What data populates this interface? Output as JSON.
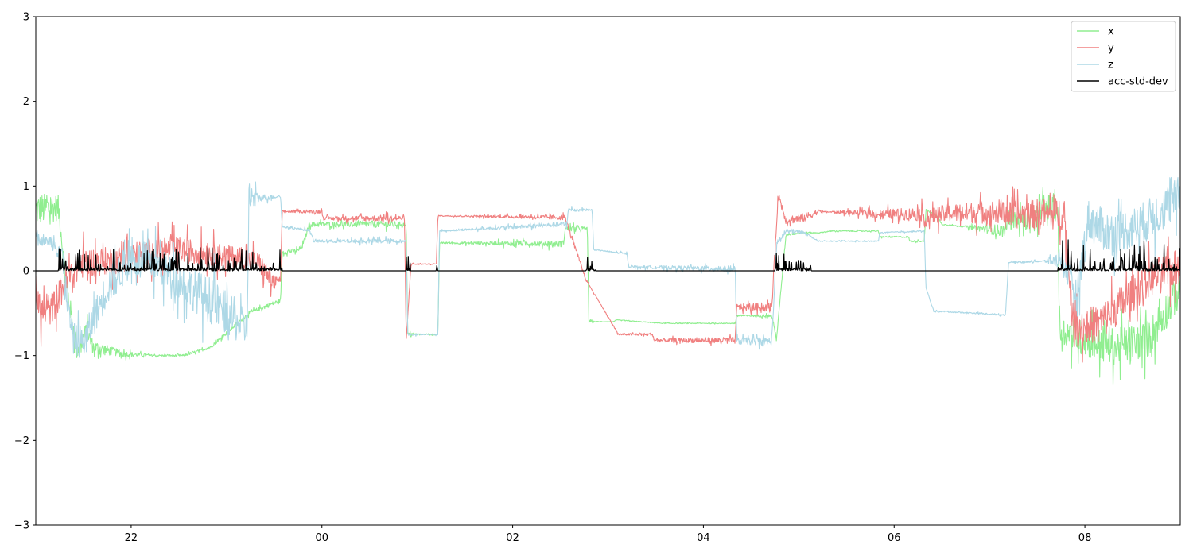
{
  "chart_data": {
    "type": "line",
    "title": "",
    "xlabel": "",
    "ylabel": "",
    "xlim": [
      "21:00",
      "09:00"
    ],
    "ylim": [
      -3,
      3
    ],
    "x_ticks": [
      "22",
      "00",
      "02",
      "04",
      "06",
      "08"
    ],
    "y_ticks": [
      "−3",
      "−2",
      "−1",
      "0",
      "1",
      "2",
      "3"
    ],
    "grid": false,
    "legend_position": "top-right",
    "series": [
      {
        "name": "x",
        "color": "#90ee90",
        "noise": [
          [
            0,
            0.2
          ],
          [
            5.2,
            0.04
          ],
          [
            7.4,
            0.01
          ],
          [
            22.3,
            0.04
          ],
          [
            24.3,
            0.005
          ],
          [
            33.3,
            0.04
          ],
          [
            35.3,
            0.005
          ],
          [
            39.6,
            0.005
          ],
          [
            43.6,
            0.005
          ],
          [
            46.8,
            0.02
          ],
          [
            49.2,
            0.005
          ],
          [
            55.8,
            0.01
          ],
          [
            58.2,
            0.005
          ],
          [
            66.1,
            0.22
          ],
          [
            72,
            0.22
          ]
        ],
        "points": [
          [
            0,
            0.72
          ],
          [
            1.4,
            0.75
          ],
          [
            1.5,
            0.65
          ],
          [
            1.9,
            -0.15
          ],
          [
            2.6,
            -0.95
          ],
          [
            3.2,
            -0.7
          ],
          [
            3.6,
            -0.9
          ],
          [
            5.5,
            -0.98
          ],
          [
            7.5,
            -1.0
          ],
          [
            9.3,
            -1.0
          ],
          [
            11.0,
            -0.9
          ],
          [
            13.4,
            -0.5
          ],
          [
            15.4,
            -0.35
          ],
          [
            15.5,
            0.22
          ],
          [
            16.5,
            0.24
          ],
          [
            16.8,
            0.3
          ],
          [
            17.2,
            0.55
          ],
          [
            23.3,
            0.55
          ],
          [
            23.4,
            -0.75
          ],
          [
            25.3,
            -0.75
          ],
          [
            25.4,
            0.33
          ],
          [
            33.2,
            0.32
          ],
          [
            33.3,
            0.5
          ],
          [
            34.7,
            0.5
          ],
          [
            34.8,
            -0.6
          ],
          [
            36.4,
            -0.6
          ],
          [
            36.5,
            -0.58
          ],
          [
            39.5,
            -0.62
          ],
          [
            44.0,
            -0.62
          ],
          [
            44.1,
            -0.53
          ],
          [
            46.3,
            -0.53
          ],
          [
            46.6,
            -0.8
          ],
          [
            47.2,
            0.43
          ],
          [
            48.4,
            0.45
          ],
          [
            49.3,
            0.45
          ],
          [
            50.0,
            0.47
          ],
          [
            53.0,
            0.47
          ],
          [
            53.1,
            0.4
          ],
          [
            54.9,
            0.4
          ],
          [
            55.0,
            0.35
          ],
          [
            55.9,
            0.35
          ],
          [
            56.0,
            0.72
          ],
          [
            56.7,
            0.65
          ],
          [
            57.0,
            0.55
          ],
          [
            61.0,
            0.47
          ],
          [
            61.1,
            0.6
          ],
          [
            63.1,
            0.6
          ],
          [
            63.2,
            0.75
          ],
          [
            64.3,
            0.75
          ],
          [
            64.4,
            -0.7
          ],
          [
            66.0,
            -0.8
          ],
          [
            68.0,
            -0.9
          ],
          [
            70.0,
            -0.8
          ],
          [
            72.0,
            -0.2
          ]
        ]
      },
      {
        "name": "y",
        "color": "#f08080",
        "noise": [
          [
            0,
            0.2
          ],
          [
            5.2,
            0.16
          ],
          [
            7.4,
            0.16
          ],
          [
            14.8,
            0.12
          ],
          [
            15.5,
            0.01
          ],
          [
            22.3,
            0.04
          ],
          [
            24.3,
            0.005
          ],
          [
            25.5,
            0.005
          ],
          [
            33.3,
            0.03
          ],
          [
            35.3,
            0.005
          ],
          [
            46.8,
            0.05
          ],
          [
            48.8,
            0.05
          ],
          [
            49.6,
            0.005
          ],
          [
            66.1,
            0.22
          ],
          [
            72,
            0.22
          ]
        ],
        "points": [
          [
            0,
            -0.15
          ],
          [
            0.2,
            -0.48
          ],
          [
            1.0,
            -0.45
          ],
          [
            2.0,
            -0.1
          ],
          [
            3.0,
            0.1
          ],
          [
            5.0,
            0.12
          ],
          [
            7.0,
            0.22
          ],
          [
            9.0,
            0.25
          ],
          [
            11.0,
            0.2
          ],
          [
            13.0,
            0.15
          ],
          [
            14.0,
            0.1
          ],
          [
            15.0,
            -0.15
          ],
          [
            15.4,
            -0.1
          ],
          [
            15.5,
            0.7
          ],
          [
            18.0,
            0.7
          ],
          [
            18.1,
            0.62
          ],
          [
            23.2,
            0.62
          ],
          [
            23.3,
            -0.85
          ],
          [
            23.6,
            0.08
          ],
          [
            25.2,
            0.08
          ],
          [
            25.3,
            0.65
          ],
          [
            33.3,
            0.63
          ],
          [
            34.6,
            -0.1
          ],
          [
            36.5,
            -0.7
          ],
          [
            36.6,
            -0.75
          ],
          [
            38.8,
            -0.75
          ],
          [
            38.9,
            -0.82
          ],
          [
            44.0,
            -0.82
          ],
          [
            44.1,
            -0.43
          ],
          [
            46.3,
            -0.43
          ],
          [
            46.7,
            0.9
          ],
          [
            47.2,
            0.6
          ],
          [
            48.4,
            0.63
          ],
          [
            49.2,
            0.7
          ],
          [
            52.6,
            0.68
          ],
          [
            52.7,
            0.67
          ],
          [
            55.8,
            0.67
          ],
          [
            55.9,
            0.6
          ],
          [
            56.5,
            0.65
          ],
          [
            57.2,
            0.68
          ],
          [
            61.0,
            0.7
          ],
          [
            61.2,
            0.66
          ],
          [
            64.7,
            0.68
          ],
          [
            65.3,
            -0.7
          ],
          [
            67.0,
            -0.6
          ],
          [
            70.0,
            -0.1
          ],
          [
            72.0,
            0.05
          ]
        ]
      },
      {
        "name": "z",
        "color": "#add8e6",
        "noise": [
          [
            0,
            0.05
          ],
          [
            0.8,
            0.05
          ],
          [
            1.4,
            0.18
          ],
          [
            5.2,
            0.22
          ],
          [
            9.0,
            0.22
          ],
          [
            11.0,
            0.28
          ],
          [
            13.4,
            0.22
          ],
          [
            14.0,
            0.05
          ],
          [
            15.4,
            0.01
          ],
          [
            22.3,
            0.03
          ],
          [
            24.3,
            0.005
          ],
          [
            33.3,
            0.03
          ],
          [
            35.3,
            0.005
          ],
          [
            46.8,
            0.05
          ],
          [
            48.8,
            0.005
          ],
          [
            63.4,
            0.01
          ],
          [
            66.1,
            0.25
          ],
          [
            72,
            0.25
          ]
        ],
        "points": [
          [
            0,
            0.45
          ],
          [
            0.3,
            0.35
          ],
          [
            1.2,
            0.35
          ],
          [
            1.6,
            0.25
          ],
          [
            2.3,
            -0.8
          ],
          [
            3.0,
            -0.85
          ],
          [
            4.5,
            -0.2
          ],
          [
            6.0,
            0.15
          ],
          [
            7.4,
            0.1
          ],
          [
            9.3,
            -0.15
          ],
          [
            11.0,
            -0.35
          ],
          [
            13.3,
            -0.7
          ],
          [
            13.4,
            0.85
          ],
          [
            15.4,
            0.88
          ],
          [
            15.5,
            0.52
          ],
          [
            17.2,
            0.48
          ],
          [
            17.5,
            0.35
          ],
          [
            23.3,
            0.35
          ],
          [
            23.4,
            -0.75
          ],
          [
            25.3,
            -0.75
          ],
          [
            25.4,
            0.47
          ],
          [
            33.4,
            0.55
          ],
          [
            33.5,
            0.72
          ],
          [
            35.0,
            0.72
          ],
          [
            35.1,
            0.25
          ],
          [
            37.2,
            0.2
          ],
          [
            37.3,
            0.05
          ],
          [
            44.0,
            0.02
          ],
          [
            44.1,
            -0.83
          ],
          [
            46.3,
            -0.83
          ],
          [
            46.6,
            0.3
          ],
          [
            47.2,
            0.47
          ],
          [
            48.4,
            0.45
          ],
          [
            49.2,
            0.35
          ],
          [
            53.0,
            0.35
          ],
          [
            53.1,
            0.45
          ],
          [
            55.9,
            0.47
          ],
          [
            56.0,
            -0.2
          ],
          [
            56.5,
            -0.48
          ],
          [
            57.2,
            -0.48
          ],
          [
            61.0,
            -0.52
          ],
          [
            61.2,
            0.1
          ],
          [
            64.3,
            0.12
          ],
          [
            64.4,
            0.2
          ],
          [
            65.5,
            -0.3
          ],
          [
            66.2,
            0.6
          ],
          [
            67.5,
            0.45
          ],
          [
            69.0,
            0.5
          ],
          [
            70.0,
            0.6
          ],
          [
            72.0,
            0.88
          ]
        ]
      },
      {
        "name": "acc-std-dev",
        "color": "#000000",
        "noise": [],
        "points": [
          [
            0,
            0.0
          ],
          [
            72,
            0.0
          ]
        ],
        "spike_regions": [
          [
            1.4,
            15.5,
            0.28
          ],
          [
            23.3,
            23.6,
            0.2
          ],
          [
            25.2,
            25.3,
            0.15
          ],
          [
            34.6,
            35.2,
            0.3
          ],
          [
            46.5,
            48.8,
            0.22
          ],
          [
            64.3,
            72.0,
            0.38
          ]
        ]
      }
    ]
  }
}
